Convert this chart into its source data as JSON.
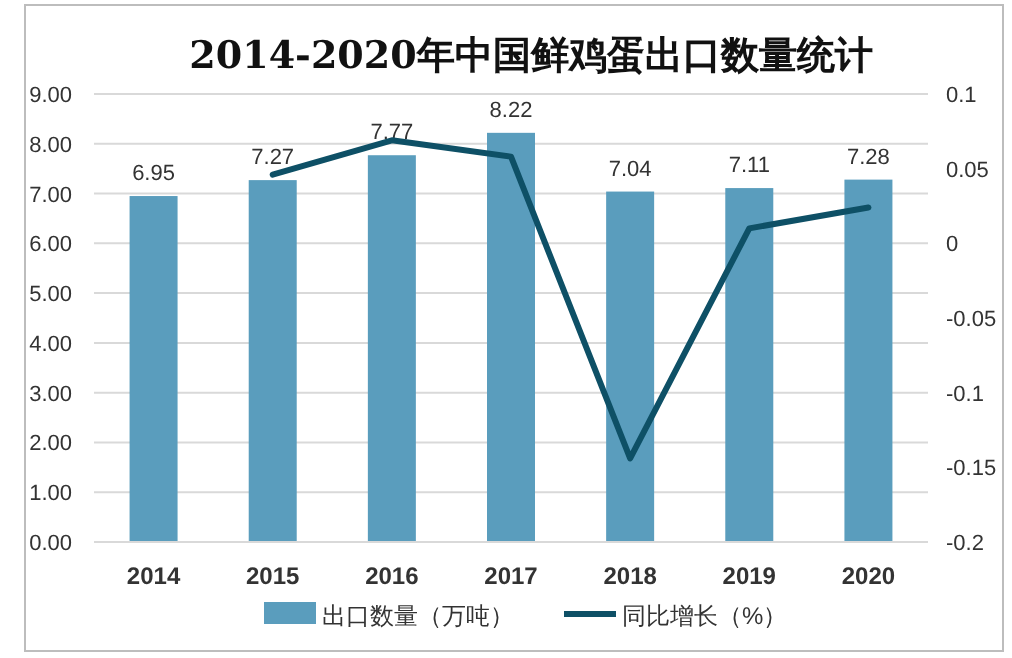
{
  "chart_data": {
    "type": "bar",
    "title": "2014-2020年中国鲜鸡蛋出口数量统计",
    "categories": [
      "2014",
      "2015",
      "2016",
      "2017",
      "2018",
      "2019",
      "2020"
    ],
    "series": [
      {
        "name": "出口数量（万吨）",
        "color": "#5a9dbd",
        "values": [
          6.95,
          7.27,
          7.77,
          8.22,
          7.04,
          7.11,
          7.28
        ],
        "value_labels": [
          "6.95",
          "7.27",
          "7.77",
          "8.22",
          "7.04",
          "7.11",
          "7.28"
        ]
      },
      {
        "name": "同比增长（%）",
        "type": "line",
        "axis": "y2",
        "color": "#0e5066",
        "values": [
          null,
          0.046,
          0.069,
          0.058,
          -0.144,
          0.01,
          0.024
        ]
      }
    ],
    "ylim": [
      0,
      9
    ],
    "yticks": [
      {
        "value": 0,
        "label": "0.00"
      },
      {
        "value": 1,
        "label": "1.00"
      },
      {
        "value": 2,
        "label": "2.00"
      },
      {
        "value": 3,
        "label": "3.00"
      },
      {
        "value": 4,
        "label": "4.00"
      },
      {
        "value": 5,
        "label": "5.00"
      },
      {
        "value": 6,
        "label": "6.00"
      },
      {
        "value": 7,
        "label": "7.00"
      },
      {
        "value": 8,
        "label": "8.00"
      },
      {
        "value": 9,
        "label": "9.00"
      }
    ],
    "y2lim": [
      -0.2,
      0.1
    ],
    "y2ticks": [
      -0.2,
      -0.15,
      -0.1,
      -0.05,
      0,
      0.05,
      0.1
    ],
    "grid": "y",
    "legend": "bottom"
  }
}
